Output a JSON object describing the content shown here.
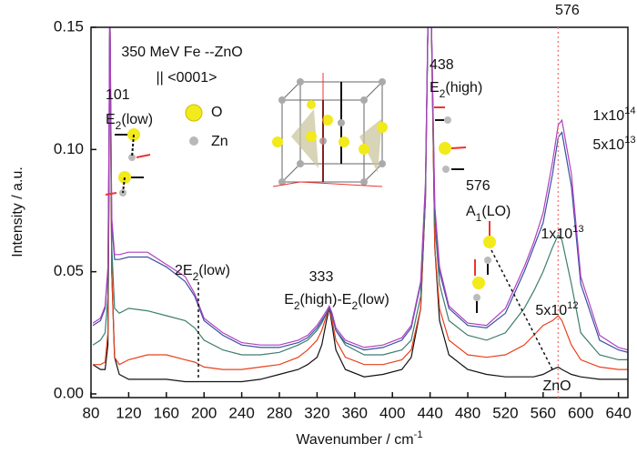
{
  "chart_data": {
    "type": "line",
    "x_label": [
      {
        "t": "Wavenumber / cm"
      },
      {
        "sup": "-1"
      }
    ],
    "y_label": [
      {
        "t": "Intensity / a.u."
      }
    ],
    "x": [
      82,
      90,
      95,
      98,
      99,
      100,
      102,
      105,
      110,
      120,
      140,
      160,
      180,
      190,
      200,
      220,
      240,
      260,
      280,
      300,
      310,
      320,
      325,
      330,
      333,
      336,
      340,
      350,
      370,
      390,
      410,
      420,
      430,
      435,
      438,
      441,
      445,
      450,
      460,
      480,
      500,
      520,
      540,
      550,
      560,
      570,
      576,
      580,
      590,
      600,
      620,
      640,
      650
    ],
    "series": [
      {
        "name": [
          {
            "t": "ZnO"
          }
        ],
        "color": "#111111",
        "values": [
          0.012,
          0.01,
          0.01,
          0.02,
          0.08,
          0.16,
          0.05,
          0.015,
          0.008,
          0.006,
          0.006,
          0.006,
          0.005,
          0.005,
          0.005,
          0.005,
          0.005,
          0.006,
          0.008,
          0.01,
          0.012,
          0.015,
          0.02,
          0.03,
          0.035,
          0.028,
          0.018,
          0.01,
          0.007,
          0.008,
          0.01,
          0.015,
          0.035,
          0.08,
          0.16,
          0.16,
          0.06,
          0.03,
          0.016,
          0.01,
          0.008,
          0.007,
          0.007,
          0.007,
          0.008,
          0.01,
          0.011,
          0.01,
          0.008,
          0.007,
          0.006,
          0.006,
          0.006
        ]
      },
      {
        "name": [
          {
            "t": "5x10"
          },
          {
            "sup": "12"
          }
        ],
        "color": "#e8401c",
        "values": [
          0.012,
          0.012,
          0.013,
          0.025,
          0.085,
          0.16,
          0.05,
          0.015,
          0.012,
          0.014,
          0.016,
          0.016,
          0.014,
          0.013,
          0.011,
          0.01,
          0.01,
          0.011,
          0.012,
          0.015,
          0.018,
          0.022,
          0.026,
          0.032,
          0.035,
          0.03,
          0.022,
          0.015,
          0.012,
          0.012,
          0.014,
          0.018,
          0.035,
          0.08,
          0.16,
          0.16,
          0.06,
          0.035,
          0.022,
          0.016,
          0.015,
          0.016,
          0.02,
          0.024,
          0.028,
          0.03,
          0.032,
          0.03,
          0.02,
          0.014,
          0.011,
          0.01,
          0.01
        ]
      },
      {
        "name": [
          {
            "t": "1x10"
          },
          {
            "sup": "13"
          }
        ],
        "color": "#3d7d6e",
        "values": [
          0.02,
          0.022,
          0.025,
          0.04,
          0.09,
          0.16,
          0.06,
          0.035,
          0.033,
          0.035,
          0.034,
          0.032,
          0.03,
          0.027,
          0.022,
          0.018,
          0.016,
          0.016,
          0.017,
          0.02,
          0.022,
          0.026,
          0.029,
          0.033,
          0.035,
          0.032,
          0.026,
          0.02,
          0.016,
          0.016,
          0.018,
          0.022,
          0.04,
          0.08,
          0.16,
          0.16,
          0.07,
          0.045,
          0.03,
          0.024,
          0.022,
          0.025,
          0.035,
          0.042,
          0.05,
          0.06,
          0.065,
          0.063,
          0.045,
          0.025,
          0.016,
          0.014,
          0.014
        ]
      },
      {
        "name": [
          {
            "t": "5x10"
          },
          {
            "sup": "13"
          }
        ],
        "color": "#3a4fa0",
        "values": [
          0.028,
          0.03,
          0.035,
          0.05,
          0.1,
          0.16,
          0.07,
          0.055,
          0.055,
          0.056,
          0.056,
          0.052,
          0.046,
          0.04,
          0.03,
          0.024,
          0.02,
          0.019,
          0.019,
          0.021,
          0.023,
          0.027,
          0.03,
          0.033,
          0.035,
          0.032,
          0.026,
          0.021,
          0.018,
          0.019,
          0.022,
          0.027,
          0.045,
          0.085,
          0.16,
          0.16,
          0.075,
          0.05,
          0.035,
          0.028,
          0.027,
          0.033,
          0.05,
          0.06,
          0.07,
          0.09,
          0.105,
          0.107,
          0.085,
          0.045,
          0.022,
          0.018,
          0.017
        ]
      },
      {
        "name": [
          {
            "t": "1x10"
          },
          {
            "sup": "14"
          }
        ],
        "color": "#b040c0",
        "values": [
          0.029,
          0.031,
          0.036,
          0.052,
          0.1,
          0.16,
          0.072,
          0.057,
          0.057,
          0.058,
          0.058,
          0.053,
          0.048,
          0.041,
          0.031,
          0.025,
          0.021,
          0.02,
          0.02,
          0.022,
          0.024,
          0.028,
          0.031,
          0.034,
          0.036,
          0.033,
          0.027,
          0.022,
          0.019,
          0.02,
          0.023,
          0.028,
          0.046,
          0.086,
          0.16,
          0.16,
          0.077,
          0.052,
          0.036,
          0.029,
          0.028,
          0.035,
          0.052,
          0.062,
          0.074,
          0.095,
          0.11,
          0.112,
          0.09,
          0.048,
          0.024,
          0.019,
          0.018
        ]
      }
    ],
    "xlim": [
      80,
      650
    ],
    "ylim": [
      -0.0015,
      0.15
    ],
    "xticks": [
      80,
      120,
      160,
      200,
      240,
      280,
      320,
      360,
      400,
      440,
      480,
      520,
      560,
      600,
      640
    ],
    "yticks": [
      {
        "value": 0,
        "label": "0.00"
      },
      {
        "value": 0.05,
        "label": "0.05"
      },
      {
        "value": 0.1,
        "label": "0.10"
      },
      {
        "value": 0.15,
        "label": "0.15"
      }
    ],
    "vline": 576,
    "annotations": [
      [
        {
          "t": "350 MeV Fe --ZnO"
        }
      ],
      [
        {
          "t": "|| <0001>"
        }
      ],
      [
        {
          "t": "101"
        }
      ],
      [
        {
          "t": "E"
        },
        {
          "sub": "2"
        },
        {
          "t": "(low)"
        }
      ],
      [
        {
          "t": "O"
        }
      ],
      [
        {
          "t": "Zn"
        }
      ],
      [
        {
          "t": "2E"
        },
        {
          "sub": "2"
        },
        {
          "t": "(low)"
        }
      ],
      [
        {
          "t": "333"
        }
      ],
      [
        {
          "t": "E"
        },
        {
          "sub": "2"
        },
        {
          "t": "(high)-E"
        },
        {
          "sub": "2"
        },
        {
          "t": "(low)"
        }
      ],
      [
        {
          "t": "438"
        }
      ],
      [
        {
          "t": "E"
        },
        {
          "sub": "2"
        },
        {
          "t": "(high)"
        }
      ],
      [
        {
          "t": "576"
        }
      ],
      [
        {
          "t": "A"
        },
        {
          "sub": "1"
        },
        {
          "t": "(LO)"
        }
      ]
    ]
  }
}
